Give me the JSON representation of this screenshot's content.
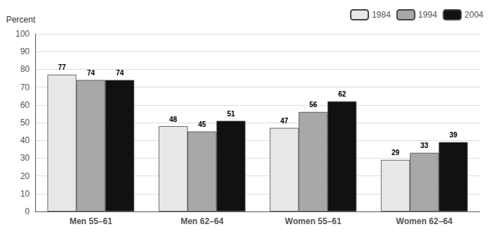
{
  "chart_data": {
    "type": "bar",
    "ylabel": "Percent",
    "categories": [
      "Men 55–61",
      "Men 62–64",
      "Women 55–61",
      "Women 62–64"
    ],
    "series": [
      {
        "name": "1984",
        "color": "#e8e8e8",
        "values": [
          77,
          48,
          47,
          29
        ]
      },
      {
        "name": "1994",
        "color": "#a8a8a8",
        "values": [
          74,
          45,
          56,
          33
        ]
      },
      {
        "name": "2004",
        "color": "#111111",
        "values": [
          74,
          51,
          62,
          39
        ]
      }
    ],
    "ylim": [
      0,
      100
    ],
    "yticks": [
      0,
      10,
      20,
      30,
      40,
      50,
      60,
      70,
      80,
      90,
      100
    ],
    "grid": true,
    "legend": "upper right",
    "data_labels": true
  }
}
